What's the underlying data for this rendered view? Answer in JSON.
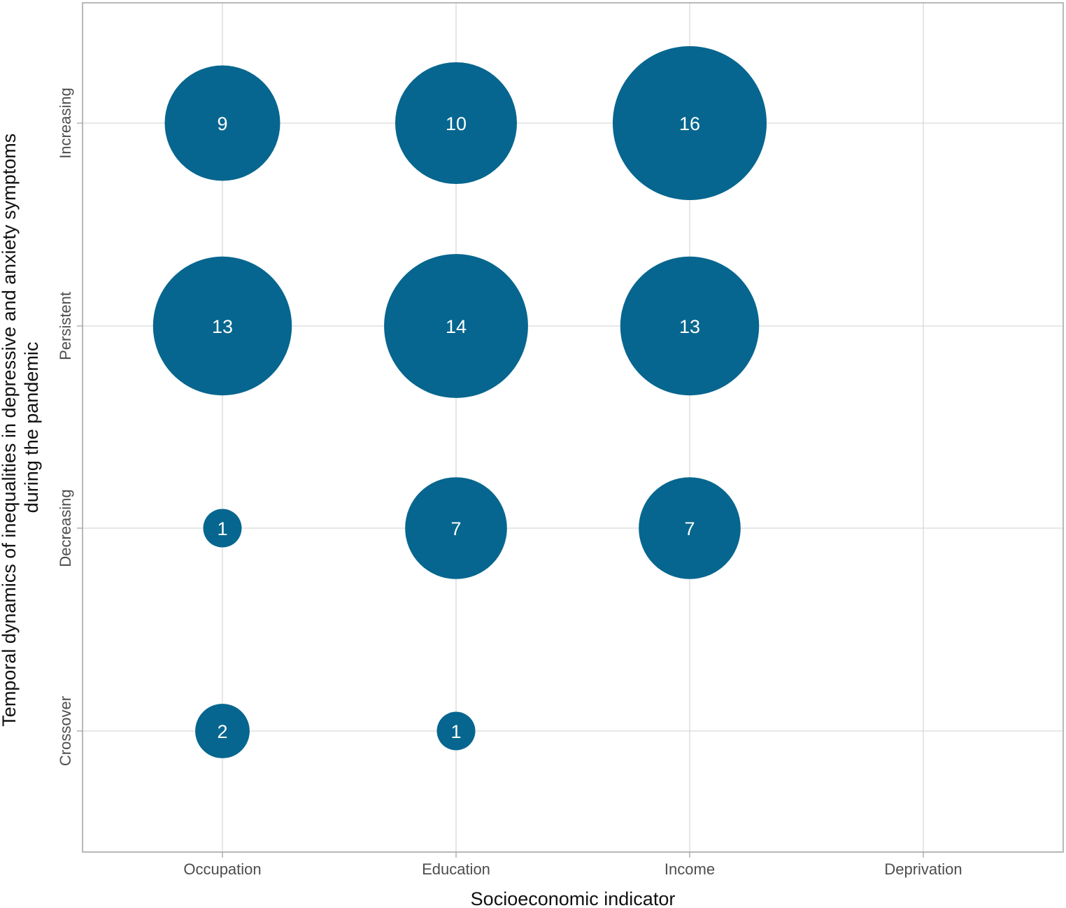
{
  "chart_data": {
    "type": "scatter",
    "subtype": "bubble",
    "xlabel": "Socioeconomic indicator",
    "ylabel_lines": [
      "Temporal dynamics of inequalities in depressive and anxiety symptoms",
      "during the pandemic"
    ],
    "x_categories": [
      "Occupation",
      "Education",
      "Income",
      "Deprivation"
    ],
    "y_categories": [
      "Crossover",
      "Decreasing",
      "Persistent",
      "Increasing"
    ],
    "grid": true,
    "legend": "none",
    "bubble_color": "#06668f",
    "label_color": "#ffffff",
    "points": [
      {
        "x": "Occupation",
        "y": "Increasing",
        "value": 9
      },
      {
        "x": "Education",
        "y": "Increasing",
        "value": 10
      },
      {
        "x": "Income",
        "y": "Increasing",
        "value": 16
      },
      {
        "x": "Occupation",
        "y": "Persistent",
        "value": 13
      },
      {
        "x": "Education",
        "y": "Persistent",
        "value": 14
      },
      {
        "x": "Income",
        "y": "Persistent",
        "value": 13
      },
      {
        "x": "Occupation",
        "y": "Decreasing",
        "value": 1
      },
      {
        "x": "Education",
        "y": "Decreasing",
        "value": 7
      },
      {
        "x": "Income",
        "y": "Decreasing",
        "value": 7
      },
      {
        "x": "Occupation",
        "y": "Crossover",
        "value": 2
      },
      {
        "x": "Education",
        "y": "Crossover",
        "value": 1
      }
    ]
  }
}
